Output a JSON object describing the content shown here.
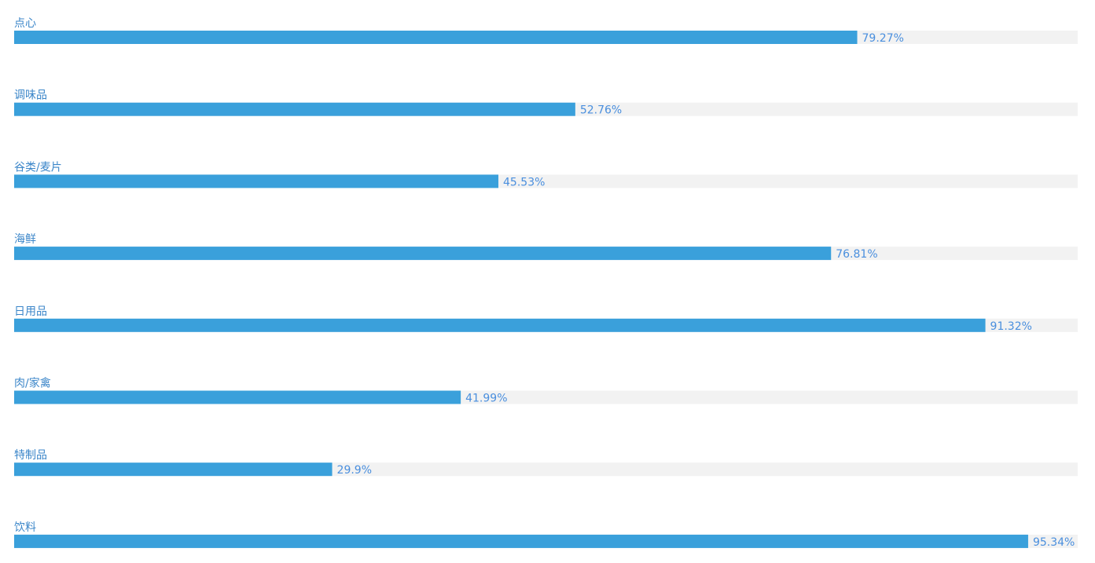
{
  "chart_data": {
    "type": "bar",
    "orientation": "horizontal",
    "title": "",
    "xlabel": "",
    "ylabel": "",
    "xlim": [
      0,
      100
    ],
    "grid": false,
    "legend": "none",
    "categories": [
      "点心",
      "调味品",
      "谷类/麦片",
      "海鲜",
      "日用品",
      "肉/家禽",
      "特制品",
      "饮料"
    ],
    "values": [
      79.27,
      52.76,
      45.53,
      76.81,
      91.32,
      41.99,
      29.9,
      95.34
    ],
    "value_labels": [
      "79.27%",
      "52.76%",
      "45.53%",
      "76.81%",
      "91.32%",
      "41.99%",
      "29.9%",
      "95.34%"
    ],
    "colors": {
      "bar": "#3aa0db",
      "track": "#f2f2f2",
      "category_text": "#3b86c9",
      "value_text": "#4a8fde"
    }
  }
}
